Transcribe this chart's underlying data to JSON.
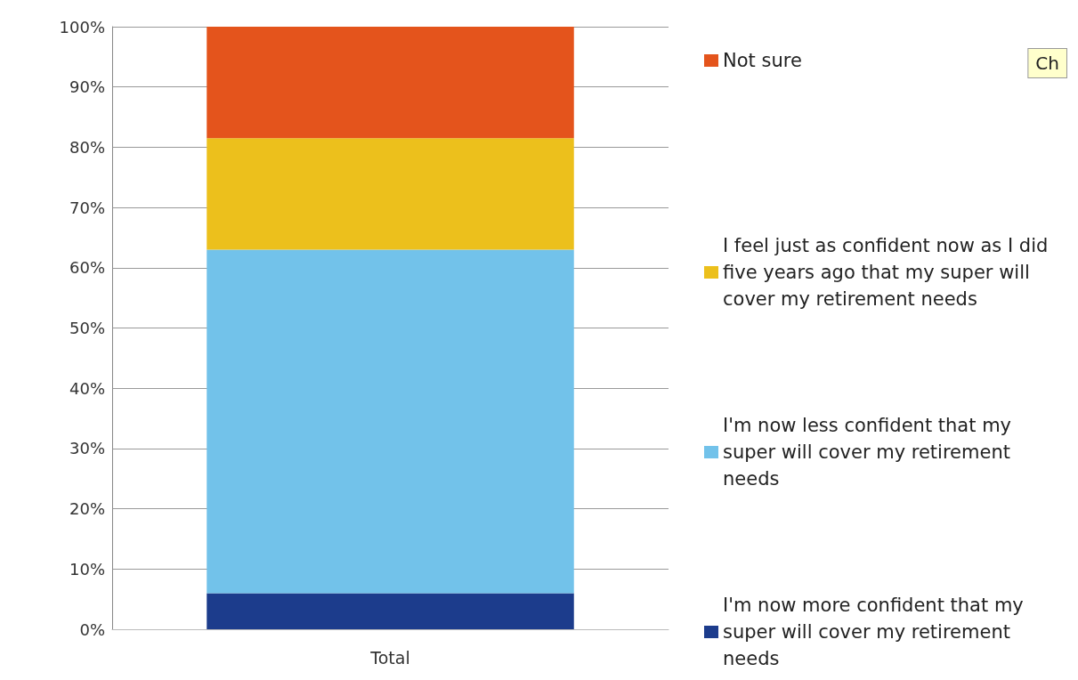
{
  "chart_data": {
    "type": "bar",
    "stacked": true,
    "categories": [
      "Total"
    ],
    "series": [
      {
        "name": "I'm now more confident that my super will cover my retirement needs",
        "color": "#1c3c8c",
        "values": [
          6
        ]
      },
      {
        "name": "I'm now less confident that my super will cover my retirement needs",
        "color": "#72c2ea",
        "values": [
          57
        ]
      },
      {
        "name": "I feel just as confident now as I did five years ago that my super will cover my retirement needs",
        "color": "#ecc01c",
        "values": [
          18.5
        ]
      },
      {
        "name": "Not sure",
        "color": "#e4541c",
        "values": [
          18.5
        ]
      }
    ],
    "ylim": [
      0,
      100
    ],
    "yticks": [
      {
        "value": 0,
        "label": "0%"
      },
      {
        "value": 10,
        "label": "10%"
      },
      {
        "value": 20,
        "label": "20%"
      },
      {
        "value": 30,
        "label": "30%"
      },
      {
        "value": 40,
        "label": "40%"
      },
      {
        "value": 50,
        "label": "50%"
      },
      {
        "value": 60,
        "label": "60%"
      },
      {
        "value": 70,
        "label": "70%"
      },
      {
        "value": 80,
        "label": "80%"
      },
      {
        "value": 90,
        "label": "90%"
      },
      {
        "value": 100,
        "label": "100%"
      }
    ],
    "grid": "y",
    "legend": "right",
    "annotations": [
      "Ch"
    ]
  }
}
